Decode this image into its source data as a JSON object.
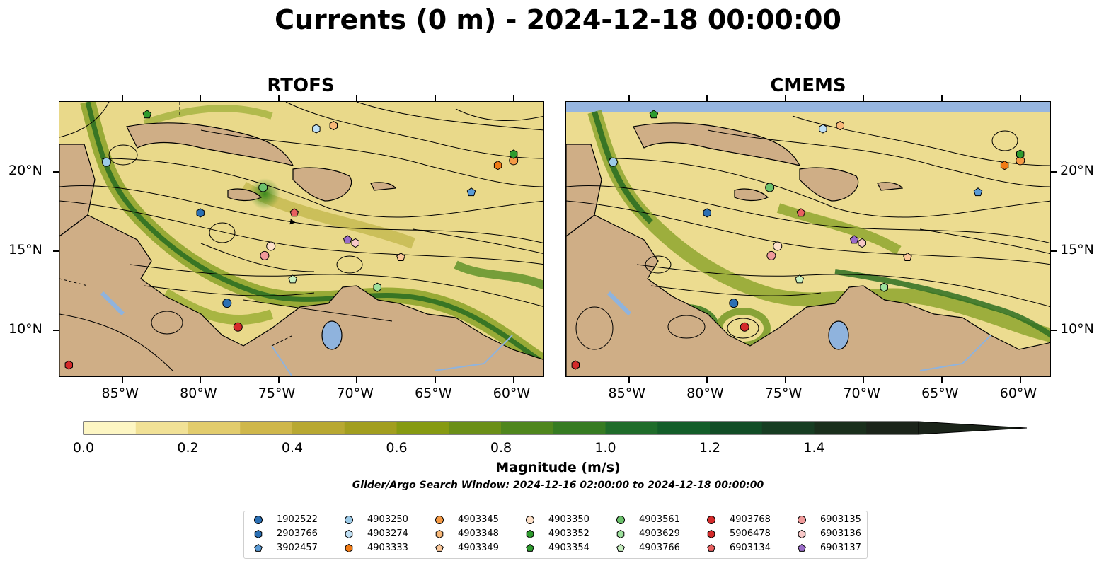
{
  "title": "Currents (0 m) - 2024-12-18 00:00:00",
  "panels": [
    {
      "title": "RTOFS"
    },
    {
      "title": "CMEMS"
    }
  ],
  "lon_ticks": [
    "85°W",
    "80°W",
    "75°W",
    "70°W",
    "65°W",
    "60°W"
  ],
  "lat_ticks": [
    "20°N",
    "15°N",
    "10°N"
  ],
  "extent": {
    "lon": [
      -89.0,
      -58.0
    ],
    "lat": [
      7.0,
      24.4
    ]
  },
  "colorbar": {
    "label": "Magnitude (m/s)",
    "ticks": [
      "0.0",
      "0.2",
      "0.4",
      "0.6",
      "0.8",
      "1.0",
      "1.2",
      "1.4"
    ],
    "colors": [
      "#fdf6c3",
      "#f1e196",
      "#e2cc6d",
      "#cfb74b",
      "#b8a832",
      "#a29e1f",
      "#869a12",
      "#6b8f18",
      "#4f861d",
      "#367b22",
      "#1f6c2a",
      "#135d29",
      "#124d26",
      "#173d22",
      "#1a2f1c",
      "#1b241a"
    ],
    "extend": "max"
  },
  "search_window": "Glider/Argo Search Window: 2024-12-16 02:00:00 to 2024-12-18 00:00:00",
  "floats": [
    {
      "id": "1902522",
      "marker": "circle",
      "color": "#2b6fb3",
      "lon": -78.3,
      "lat": 11.7
    },
    {
      "id": "2903766",
      "marker": "hexagon",
      "color": "#2b6fb3",
      "lon": -80.0,
      "lat": 17.4
    },
    {
      "id": "3902457",
      "marker": "pentagon",
      "color": "#5b9bd5",
      "lon": -62.7,
      "lat": 18.7
    },
    {
      "id": "4903250",
      "marker": "circle",
      "color": "#9dcbe8",
      "lon": -86.0,
      "lat": 20.6
    },
    {
      "id": "4903274",
      "marker": "hexagon",
      "color": "#bfe0f5",
      "lon": -72.6,
      "lat": 22.7
    },
    {
      "id": "4903333",
      "marker": "hexagon",
      "color": "#f07a14",
      "lon": -61.0,
      "lat": 20.4
    },
    {
      "id": "4903345",
      "marker": "circle",
      "color": "#f59a45",
      "lon": -60.0,
      "lat": 20.7
    },
    {
      "id": "4903348",
      "marker": "hexagon",
      "color": "#f8b878",
      "lon": -71.5,
      "lat": 22.9
    },
    {
      "id": "4903349",
      "marker": "pentagon",
      "color": "#fbc89a",
      "lon": -67.2,
      "lat": 14.6
    },
    {
      "id": "4903350",
      "marker": "circle",
      "color": "#fde0c8",
      "lon": -75.5,
      "lat": 15.3
    },
    {
      "id": "4903352",
      "marker": "hexagon",
      "color": "#2e9b2e",
      "lon": -60.0,
      "lat": 21.1
    },
    {
      "id": "4903354",
      "marker": "pentagon",
      "color": "#2e9b2e",
      "lon": -83.4,
      "lat": 23.6
    },
    {
      "id": "4903561",
      "marker": "circle",
      "color": "#6cc26c",
      "lon": -76.0,
      "lat": 19.0
    },
    {
      "id": "4903629",
      "marker": "hexagon",
      "color": "#9de09d",
      "lon": -68.7,
      "lat": 12.7
    },
    {
      "id": "4903766",
      "marker": "pentagon",
      "color": "#c8f0c0",
      "lon": -74.1,
      "lat": 13.2
    },
    {
      "id": "4903768",
      "marker": "circle",
      "color": "#d42a2a",
      "lon": -77.6,
      "lat": 10.2
    },
    {
      "id": "5906478",
      "marker": "hexagon",
      "color": "#d42a2a",
      "lon": -88.4,
      "lat": 7.8
    },
    {
      "id": "6903134",
      "marker": "pentagon",
      "color": "#e86060",
      "lon": -74.0,
      "lat": 17.4
    },
    {
      "id": "6903135",
      "marker": "circle",
      "color": "#f09a9a",
      "lon": -75.9,
      "lat": 14.7
    },
    {
      "id": "6903136",
      "marker": "hexagon",
      "color": "#f8c8c8",
      "lon": -70.1,
      "lat": 15.5
    },
    {
      "id": "6903137",
      "marker": "pentagon",
      "color": "#9a6cc8",
      "lon": -70.6,
      "lat": 15.7
    }
  ]
}
